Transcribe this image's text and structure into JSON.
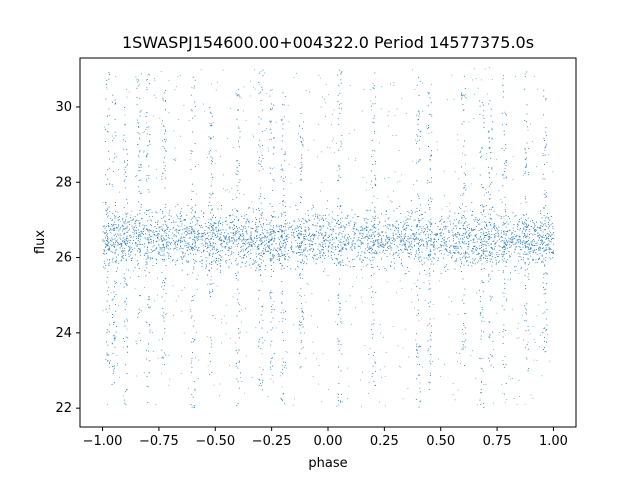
{
  "chart_data": {
    "type": "scatter",
    "title": "1SWASPJ154600.00+004322.0 Period 14577375.0s",
    "xlabel": "phase",
    "ylabel": "flux",
    "xlim": [
      -1.1,
      1.1
    ],
    "ylim": [
      21.5,
      31.3
    ],
    "xticks": [
      -1.0,
      -0.75,
      -0.5,
      -0.25,
      0.0,
      0.25,
      0.5,
      0.75,
      1.0
    ],
    "xtick_labels": [
      "−1.00",
      "−0.75",
      "−0.50",
      "−0.25",
      "0.00",
      "0.25",
      "0.50",
      "0.75",
      "1.00"
    ],
    "yticks": [
      22,
      24,
      26,
      28,
      30
    ],
    "ytick_labels": [
      "22",
      "24",
      "26",
      "28",
      "30"
    ],
    "grid": false,
    "legend": "none",
    "marker_color": "#1f77b4",
    "baseline_flux": 26.5,
    "core_band": [
      25.6,
      27.4
    ],
    "phase_range": [
      -1.0,
      1.0
    ],
    "vertical_streaks": [
      {
        "x": -0.98,
        "low": 23.0,
        "high": 31.0
      },
      {
        "x": -0.95,
        "low": 22.5,
        "high": 30.5
      },
      {
        "x": -0.9,
        "low": 22.0,
        "high": 30.0
      },
      {
        "x": -0.84,
        "low": 23.5,
        "high": 31.0
      },
      {
        "x": -0.8,
        "low": 22.0,
        "high": 31.0
      },
      {
        "x": -0.73,
        "low": 23.0,
        "high": 30.5
      },
      {
        "x": -0.6,
        "low": 22.0,
        "high": 31.0
      },
      {
        "x": -0.52,
        "low": 22.5,
        "high": 30.0
      },
      {
        "x": -0.4,
        "low": 22.0,
        "high": 30.5
      },
      {
        "x": -0.3,
        "low": 22.5,
        "high": 31.0
      },
      {
        "x": -0.25,
        "low": 23.0,
        "high": 30.5
      },
      {
        "x": -0.2,
        "low": 22.0,
        "high": 30.5
      },
      {
        "x": -0.12,
        "low": 23.0,
        "high": 30.0
      },
      {
        "x": 0.05,
        "low": 22.0,
        "high": 31.0
      },
      {
        "x": 0.2,
        "low": 22.5,
        "high": 31.0
      },
      {
        "x": 0.4,
        "low": 22.0,
        "high": 31.0
      },
      {
        "x": 0.45,
        "low": 22.5,
        "high": 30.5
      },
      {
        "x": 0.6,
        "low": 23.0,
        "high": 31.0
      },
      {
        "x": 0.68,
        "low": 22.0,
        "high": 31.0
      },
      {
        "x": 0.72,
        "low": 22.5,
        "high": 30.5
      },
      {
        "x": 0.78,
        "low": 22.0,
        "high": 31.0
      },
      {
        "x": 0.88,
        "low": 23.0,
        "high": 31.0
      },
      {
        "x": 0.96,
        "low": 23.5,
        "high": 30.5
      }
    ]
  }
}
